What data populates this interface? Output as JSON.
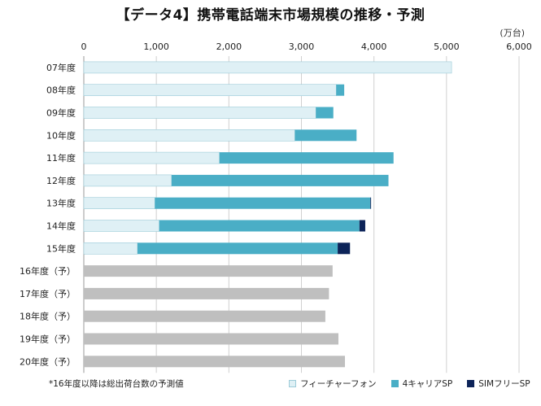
{
  "colors": {
    "feature": "#dff0f5",
    "feature_border": "#9ccbd8",
    "smart": "#4aaec6",
    "sim": "#0d2459",
    "forecast": "#bfbfbf"
  },
  "footnote": "*16年度以降は総出荷台数の予測値",
  "chart_data": {
    "type": "bar",
    "orientation": "horizontal",
    "stacked": true,
    "title": "【データ4】携帯電話端末市場規模の推移・予測",
    "unit": "(万台)",
    "xlim": [
      0,
      6000
    ],
    "ticks": [
      0,
      1000,
      2000,
      3000,
      4000,
      5000,
      6000
    ],
    "tick_labels": [
      "0",
      "1,000",
      "2,000",
      "3,000",
      "4,000",
      "5,000",
      "6,000"
    ],
    "grid": true,
    "legend_position": "bottom-right",
    "categories": [
      "07年度",
      "08年度",
      "09年度",
      "10年度",
      "11年度",
      "12年度",
      "13年度",
      "14年度",
      "15年度",
      "16年度（予）",
      "17年度（予）",
      "18年度（予）",
      "19年度（予）",
      "20年度（予）"
    ],
    "series": [
      {
        "name": "フィーチャーフォン",
        "key": "feature",
        "values": [
          5070,
          3480,
          3200,
          2910,
          1870,
          1210,
          980,
          1040,
          740,
          null,
          null,
          null,
          null,
          null
        ]
      },
      {
        "name": "4キャリアSP",
        "key": "smart",
        "values": [
          0,
          110,
          240,
          850,
          2400,
          2990,
          2970,
          2760,
          2760,
          null,
          null,
          null,
          null,
          null
        ]
      },
      {
        "name": "SIMフリーSP",
        "key": "sim",
        "values": [
          0,
          0,
          0,
          0,
          0,
          0,
          10,
          80,
          170,
          null,
          null,
          null,
          null,
          null
        ]
      },
      {
        "name": "",
        "key": "forecast",
        "values": [
          null,
          null,
          null,
          null,
          null,
          null,
          null,
          null,
          null,
          3430,
          3380,
          3330,
          3510,
          3600
        ]
      }
    ]
  }
}
